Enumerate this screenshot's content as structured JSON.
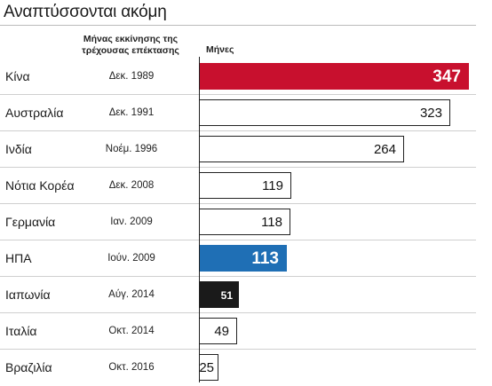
{
  "chart_data": {
    "type": "bar",
    "title": "Αναπτύσσονται ακόμη",
    "column_headers": {
      "start_month": "Μήνας εκκίνησης της τρέχουσας επέκτασης",
      "months": "Μήνες"
    },
    "categories": [
      "Κίνα",
      "Αυστραλία",
      "Ινδία",
      "Νότια Κορέα",
      "Γερμανία",
      "ΗΠΑ",
      "Ιαπωνία",
      "Ιταλία",
      "Βραζιλία"
    ],
    "start_months": [
      "Δεκ. 1989",
      "Δεκ. 1991",
      "Νοέμ. 1996",
      "Δεκ. 2008",
      "Ιαν. 2009",
      "Ιούν. 2009",
      "Αύγ. 2014",
      "Οκτ. 2014",
      "Οκτ. 2016"
    ],
    "values": [
      347,
      323,
      264,
      119,
      118,
      113,
      51,
      49,
      25
    ],
    "styles": [
      "red",
      "white",
      "white",
      "white",
      "white",
      "blue",
      "black",
      "white",
      "white"
    ],
    "colors": {
      "red": "#c8102e",
      "blue": "#1f6fb5",
      "black": "#1a1a1a",
      "white": "#ffffff"
    },
    "orientation": "horizontal",
    "grid": false
  }
}
